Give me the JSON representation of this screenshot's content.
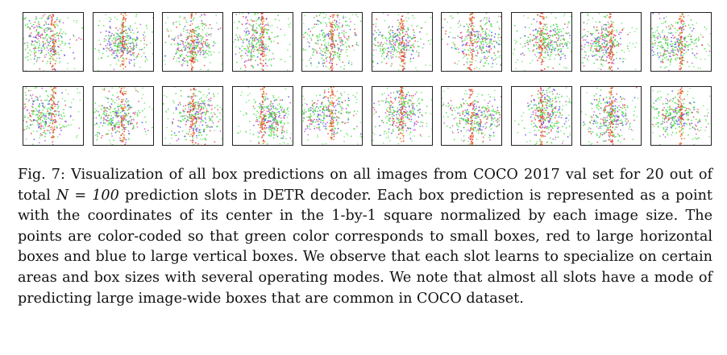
{
  "figure": {
    "rows": 2,
    "cols": 10,
    "panel_count": 20,
    "colors": {
      "small_boxes": "#3fdc3f",
      "large_horizontal": "#e8473f",
      "large_vertical": "#4c4cf0",
      "mixed": "#c855d6"
    }
  },
  "caption": {
    "label": "Fig. 7:",
    "text_before_math": "Visualization of all box predictions on all images from COCO 2017 val set for 20 out of total ",
    "math": "N = 100",
    "text_after_math": " prediction slots in DETR decoder. Each box prediction is represented as a point with the coordinates of its center in the 1-by-1 square normalized by each image size. The points are color-coded so that green color corresponds to small boxes, red to large horizontal boxes and blue to large vertical boxes. We observe that each slot learns to specialize on certain areas and box sizes with several operating modes. We note that almost all slots have a mode of predicting large image-wide boxes that are common in COCO dataset."
  }
}
